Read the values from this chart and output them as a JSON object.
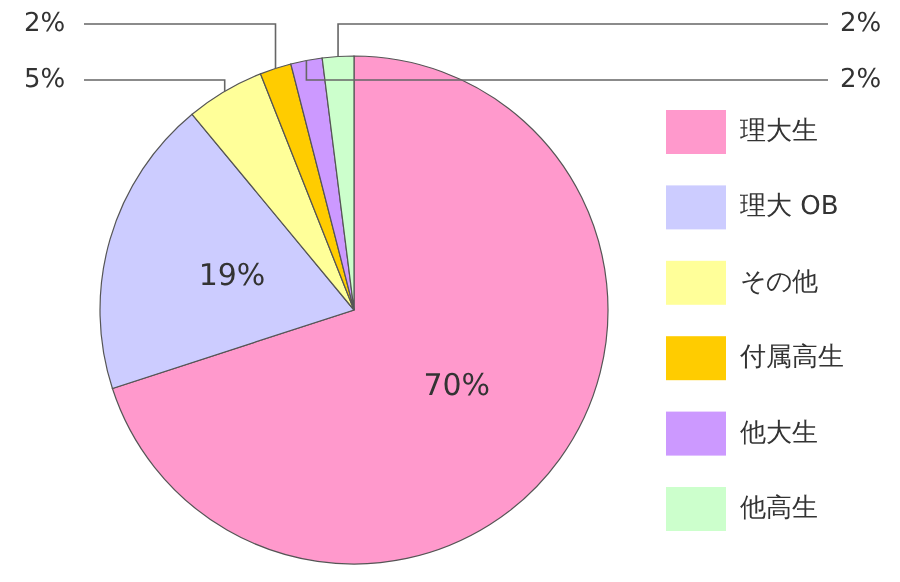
{
  "chart_data": {
    "type": "pie",
    "categories": [
      "理大生",
      "理大 OB",
      "その他",
      "付属高生",
      "他大生",
      "他高生"
    ],
    "values": [
      70,
      19,
      5,
      2,
      2,
      2
    ],
    "value_labels": [
      "70%",
      "19%",
      "5%",
      "2%",
      "2%",
      "2%"
    ],
    "colors": [
      "#ff99cc",
      "#ccccff",
      "#ffff99",
      "#ffcc00",
      "#cc99ff",
      "#ccffcc"
    ],
    "legend": "right"
  }
}
